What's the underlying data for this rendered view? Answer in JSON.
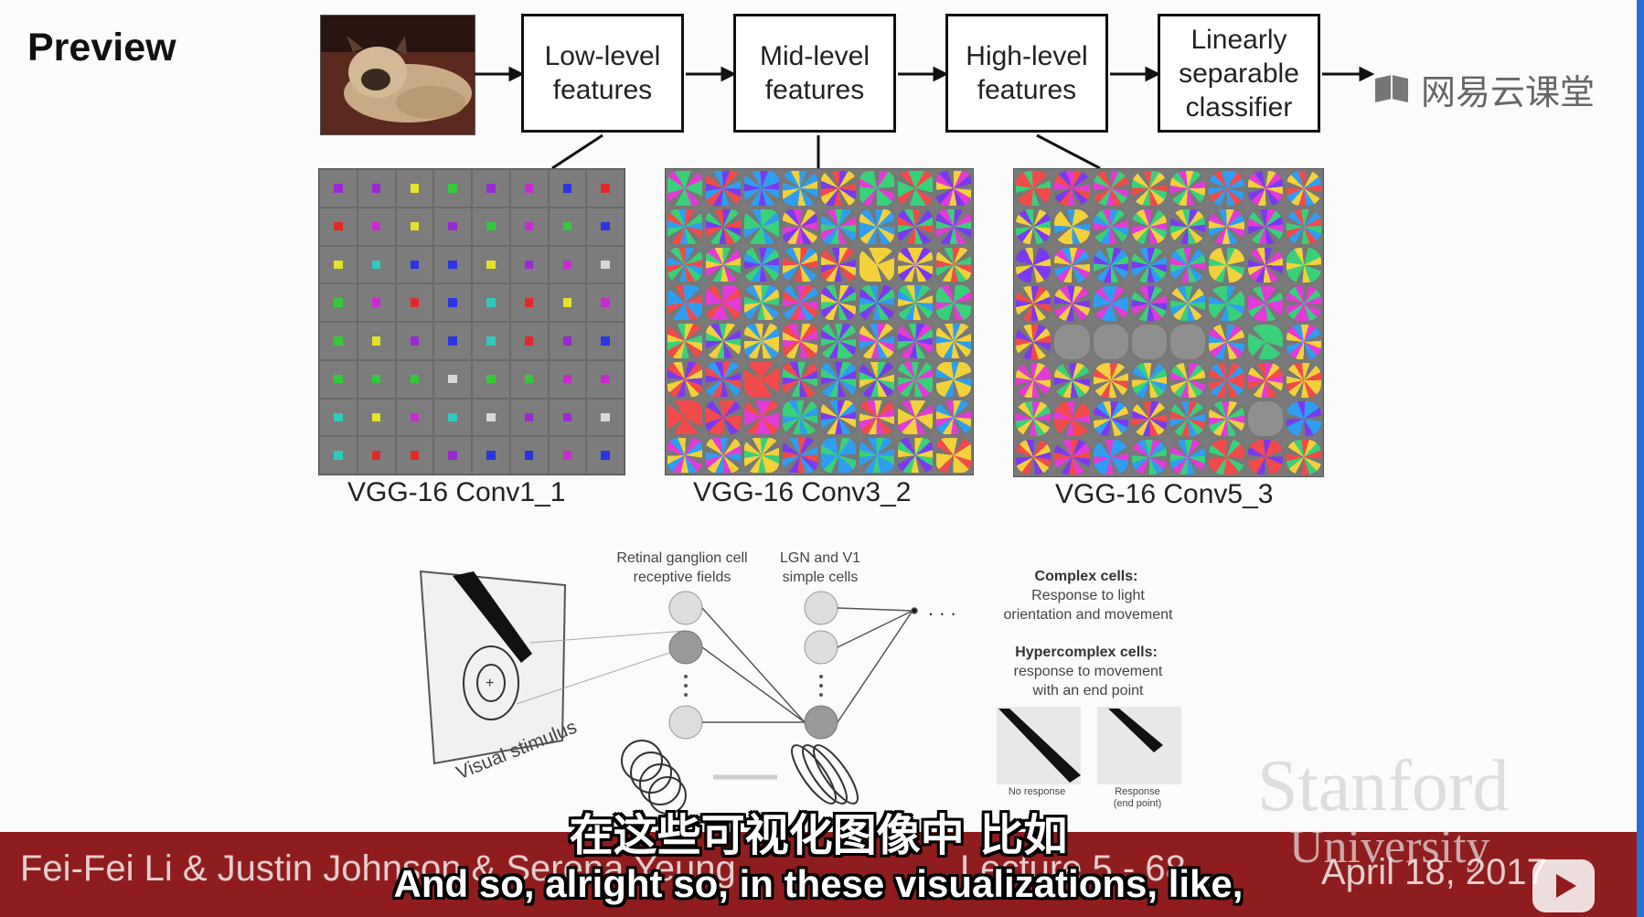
{
  "slide": {
    "title": "Preview",
    "watermark": "网易云课堂",
    "pipeline": [
      {
        "label": "Low-level\nfeatures"
      },
      {
        "label": "Mid-level\nfeatures"
      },
      {
        "label": "High-level\nfeatures"
      },
      {
        "label": "Linearly\nseparable\nclassifier"
      }
    ],
    "captions": [
      "VGG-16 Conv1_1",
      "VGG-16 Conv3_2",
      "VGG-16 Conv5_3"
    ],
    "diagram": {
      "retinal_label": "Retinal ganglion cell\nreceptive fields",
      "lgn_label": "LGN and V1\nsimple cells",
      "complex_title": "Complex cells:",
      "complex_desc": "Response to light\norientation and movement",
      "hyper_title": "Hypercomplex cells:",
      "hyper_desc": "response to movement\nwith an end point",
      "stimulus_label": "Visual stimulus",
      "no_response": "No response",
      "response_end": "Response\n(end point)"
    },
    "footer": {
      "authors": "Fei-Fei Li & Justin Johnson & Serena Yeung",
      "lecture": "Lecture 5 - 68",
      "date": "April 18, 2017",
      "stanford": "Stanford",
      "university": "University"
    }
  },
  "subtitles": {
    "chinese": "在这些可视化图像中 比如",
    "english": "And so, alright so, in these visualizations, like,"
  },
  "colors": {
    "footer_bar": "#8f1d1d",
    "grid_bg": "#7a7a7a"
  },
  "icons": [
    "arrow-right-icon",
    "book-logo-icon",
    "play-icon"
  ]
}
